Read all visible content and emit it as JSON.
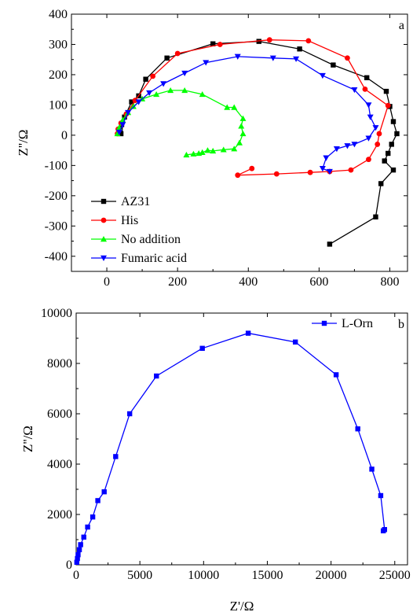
{
  "chart_data": [
    {
      "type": "line",
      "panel_label": "a",
      "xlabel": "",
      "ylabel": "Z''/Ω",
      "xlim": [
        -100,
        850
      ],
      "ylim": [
        -450,
        400
      ],
      "xticks": [
        0,
        200,
        400,
        600,
        800
      ],
      "yticks": [
        -400,
        -300,
        -200,
        -100,
        0,
        100,
        200,
        300,
        400
      ],
      "legend_position": "bottom-left",
      "series": [
        {
          "name": "AZ31",
          "color": "#000000",
          "marker": "square",
          "points": [
            [
              40,
              5
            ],
            [
              38,
              20
            ],
            [
              42,
              35
            ],
            [
              50,
              60
            ],
            [
              70,
              110
            ],
            [
              90,
              130
            ],
            [
              110,
              185
            ],
            [
              170,
              255
            ],
            [
              300,
              302
            ],
            [
              430,
              310
            ],
            [
              545,
              285
            ],
            [
              640,
              232
            ],
            [
              735,
              190
            ],
            [
              790,
              145
            ],
            [
              800,
              95
            ],
            [
              810,
              45
            ],
            [
              820,
              5
            ],
            [
              805,
              -30
            ],
            [
              795,
              -60
            ],
            [
              785,
              -85
            ],
            [
              810,
              -115
            ],
            [
              775,
              -160
            ],
            [
              760,
              -270
            ],
            [
              630,
              -360
            ]
          ]
        },
        {
          "name": "His",
          "color": "#ff0000",
          "marker": "circle",
          "points": [
            [
              30,
              5
            ],
            [
              32,
              20
            ],
            [
              40,
              40
            ],
            [
              55,
              70
            ],
            [
              80,
              115
            ],
            [
              130,
              195
            ],
            [
              200,
              270
            ],
            [
              320,
              300
            ],
            [
              460,
              315
            ],
            [
              570,
              312
            ],
            [
              680,
              255
            ],
            [
              730,
              152
            ],
            [
              795,
              98
            ],
            [
              770,
              5
            ],
            [
              765,
              -30
            ],
            [
              740,
              -80
            ],
            [
              690,
              -115
            ],
            [
              630,
              -120
            ],
            [
              575,
              -123
            ],
            [
              480,
              -128
            ],
            [
              370,
              -132
            ],
            [
              410,
              -110
            ]
          ]
        },
        {
          "name": "No addition",
          "color": "#00ff00",
          "marker": "triangle-up",
          "points": [
            [
              30,
              5
            ],
            [
              35,
              25
            ],
            [
              45,
              50
            ],
            [
              60,
              75
            ],
            [
              75,
              95
            ],
            [
              100,
              120
            ],
            [
              140,
              135
            ],
            [
              180,
              148
            ],
            [
              220,
              148
            ],
            [
              270,
              135
            ],
            [
              340,
              92
            ],
            [
              360,
              92
            ],
            [
              385,
              55
            ],
            [
              380,
              30
            ],
            [
              385,
              5
            ],
            [
              375,
              -25
            ],
            [
              360,
              -45
            ],
            [
              330,
              -48
            ],
            [
              300,
              -52
            ],
            [
              285,
              -50
            ],
            [
              270,
              -57
            ],
            [
              260,
              -60
            ],
            [
              245,
              -62
            ],
            [
              225,
              -65
            ]
          ]
        },
        {
          "name": "Fumaric acid",
          "color": "#0000ff",
          "marker": "triangle-down",
          "points": [
            [
              35,
              10
            ],
            [
              45,
              35
            ],
            [
              60,
              75
            ],
            [
              90,
              110
            ],
            [
              120,
              140
            ],
            [
              160,
              170
            ],
            [
              220,
              205
            ],
            [
              280,
              240
            ],
            [
              370,
              260
            ],
            [
              470,
              255
            ],
            [
              535,
              252
            ],
            [
              610,
              197
            ],
            [
              700,
              150
            ],
            [
              740,
              100
            ],
            [
              745,
              60
            ],
            [
              760,
              25
            ],
            [
              740,
              -10
            ],
            [
              700,
              -30
            ],
            [
              680,
              -35
            ],
            [
              650,
              -45
            ],
            [
              620,
              -75
            ],
            [
              610,
              -110
            ],
            [
              630,
              -120
            ]
          ]
        }
      ]
    },
    {
      "type": "line",
      "panel_label": "b",
      "xlabel": "Z'/Ω",
      "ylabel": "Z''/Ω",
      "xlim": [
        0,
        26000
      ],
      "ylim": [
        0,
        10000
      ],
      "xticks": [
        0,
        5000,
        10000,
        15000,
        20000,
        25000
      ],
      "yticks": [
        0,
        2000,
        4000,
        6000,
        8000,
        10000
      ],
      "legend_position": "top-right",
      "series": [
        {
          "name": "L-Orn",
          "color": "#0000ff",
          "marker": "square",
          "points": [
            [
              50,
              100
            ],
            [
              100,
              250
            ],
            [
              150,
              400
            ],
            [
              250,
              600
            ],
            [
              350,
              800
            ],
            [
              600,
              1100
            ],
            [
              900,
              1500
            ],
            [
              1300,
              1900
            ],
            [
              1700,
              2550
            ],
            [
              2200,
              2900
            ],
            [
              3100,
              4300
            ],
            [
              4200,
              6000
            ],
            [
              6300,
              7500
            ],
            [
              9900,
              8600
            ],
            [
              13500,
              9200
            ],
            [
              17200,
              8850
            ],
            [
              20400,
              7550
            ],
            [
              22100,
              5400
            ],
            [
              23200,
              3800
            ],
            [
              23900,
              2750
            ],
            [
              24200,
              1400
            ],
            [
              24100,
              1350
            ]
          ]
        }
      ]
    }
  ]
}
